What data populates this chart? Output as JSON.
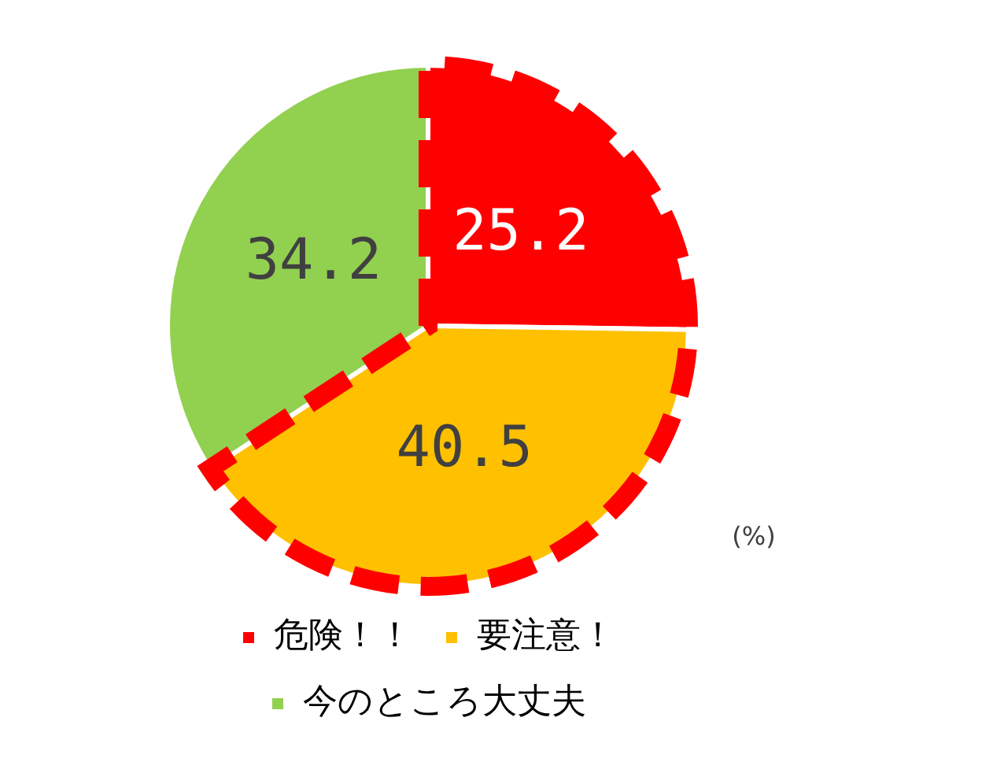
{
  "chart_data": {
    "type": "pie",
    "categories": [
      "危険！！",
      "要注意！",
      "今のところ大丈夫"
    ],
    "values": [
      25.2,
      40.5,
      34.2
    ],
    "colors": [
      "#ff0000",
      "#ffc000",
      "#92d050"
    ],
    "data_labels": true,
    "legend": "bottom",
    "annotations": [
      "(%)"
    ]
  }
}
